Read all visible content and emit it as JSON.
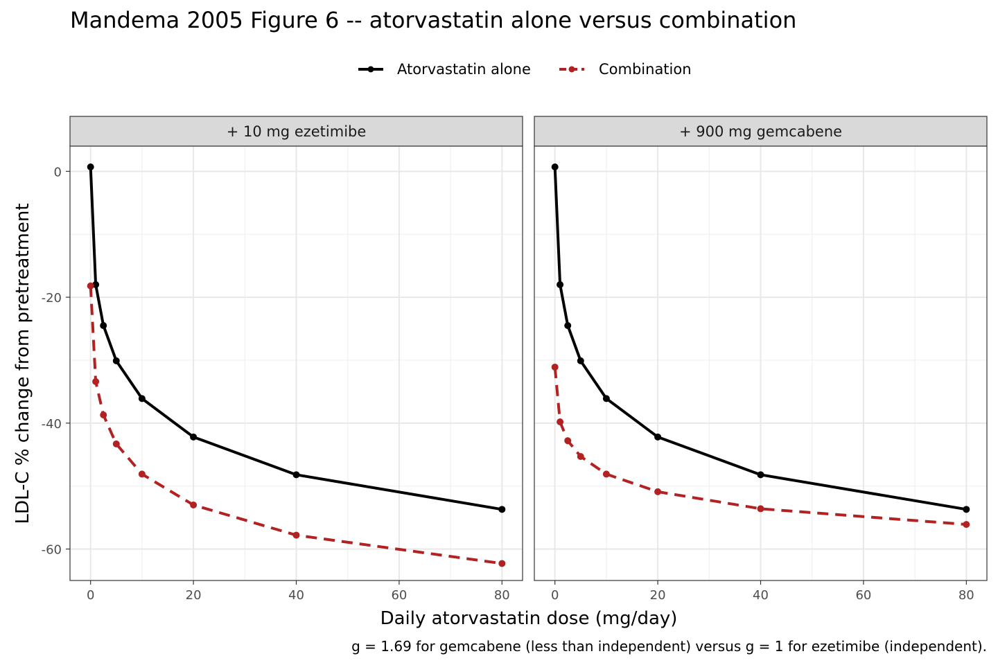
{
  "chart_data": {
    "type": "line",
    "title": "Mandema 2005 Figure 6 -- atorvastatin alone versus combination",
    "xlabel": "Daily atorvastatin dose (mg/day)",
    "ylabel": "LDL-C % change from pretreatment",
    "caption": "g = 1.69 for gemcabene (less than independent) versus g = 1 for ezetimibe (independent).",
    "xlim": [
      -4,
      84
    ],
    "ylim": [
      -65,
      4
    ],
    "x_ticks": [
      0,
      20,
      40,
      60,
      80
    ],
    "y_ticks": [
      0,
      -20,
      -40,
      -60
    ],
    "grid": true,
    "legend_position": "top",
    "legend": [
      {
        "label": "Atorvastatin alone",
        "color": "#000000",
        "linestyle": "solid"
      },
      {
        "label": "Combination",
        "color": "#b22222",
        "linestyle": "dashed"
      }
    ],
    "panels": [
      {
        "strip": "+ 10 mg ezetimibe",
        "series": [
          {
            "name": "Atorvastatin alone",
            "color": "#000000",
            "dash": false,
            "x": [
              0,
              1,
              2.5,
              5,
              10,
              20,
              40,
              80
            ],
            "y": [
              0.7,
              -18.0,
              -24.5,
              -30.1,
              -36.1,
              -42.2,
              -48.2,
              -53.7
            ]
          },
          {
            "name": "Combination",
            "color": "#b22222",
            "dash": true,
            "x": [
              0,
              1,
              2.5,
              5,
              10,
              20,
              40,
              80
            ],
            "y": [
              -18.2,
              -33.4,
              -38.7,
              -43.3,
              -48.1,
              -53.0,
              -57.8,
              -62.3
            ]
          }
        ]
      },
      {
        "strip": "+ 900 mg gemcabene",
        "series": [
          {
            "name": "Atorvastatin alone",
            "color": "#000000",
            "dash": false,
            "x": [
              0,
              1,
              2.5,
              5,
              10,
              20,
              40,
              80
            ],
            "y": [
              0.7,
              -18.0,
              -24.5,
              -30.1,
              -36.1,
              -42.2,
              -48.2,
              -53.7
            ]
          },
          {
            "name": "Combination",
            "color": "#b22222",
            "dash": true,
            "x": [
              0,
              1,
              2.5,
              5,
              10,
              20,
              40,
              80
            ],
            "y": [
              -31.1,
              -39.8,
              -42.8,
              -45.3,
              -48.1,
              -50.9,
              -53.6,
              -56.1
            ]
          }
        ]
      }
    ]
  }
}
